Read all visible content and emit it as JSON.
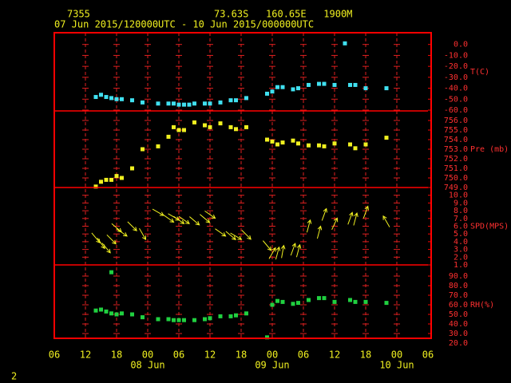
{
  "header": {
    "station": "7355",
    "location": "73.63S   160.65E   1900M",
    "period": "07 Jun 2015/120000UTC - 10 Jun 2015/000000UTC",
    "page": "2"
  },
  "chart_data": [
    {
      "type": "scatter",
      "ylabel": "T(C)",
      "color": "#40e0f0",
      "ylim": [
        -60,
        10
      ],
      "yticks": [
        {
          "value": 0,
          "label": "0.0"
        },
        {
          "value": -10,
          "label": "-10.0"
        },
        {
          "value": -20,
          "label": "-20.0"
        },
        {
          "value": -30,
          "label": "-30.0"
        },
        {
          "value": -40,
          "label": "-40.0"
        },
        {
          "value": -50,
          "label": "-50.0"
        },
        {
          "value": -60,
          "label": "-60.0"
        }
      ],
      "x": [
        8,
        9,
        10,
        11,
        12,
        13,
        15,
        17,
        20,
        22,
        23,
        24,
        25,
        26,
        27,
        29,
        30,
        32,
        34,
        35,
        37,
        41,
        42,
        43,
        44,
        46,
        47,
        49,
        51,
        52,
        54,
        56,
        57,
        58,
        60,
        64
      ],
      "values": [
        -48,
        -46,
        -48,
        -49,
        -50,
        -50,
        -51,
        -53,
        -54,
        -54,
        -54,
        -55,
        -55,
        -55,
        -54,
        -54,
        -54,
        -53,
        -51,
        -51,
        -49,
        -45,
        -43,
        -39,
        -39,
        -41,
        -40,
        -37,
        -36,
        -36,
        -37,
        1,
        -37,
        -37,
        -40,
        -40
      ]
    },
    {
      "type": "scatter",
      "ylabel": "Pre (mb)",
      "color": "#f0f020",
      "ylim": [
        749,
        757
      ],
      "yticks": [
        {
          "value": 756,
          "label": "756.0"
        },
        {
          "value": 755,
          "label": "755.0"
        },
        {
          "value": 754,
          "label": "754.0"
        },
        {
          "value": 753,
          "label": "753.0"
        },
        {
          "value": 752,
          "label": "752.0"
        },
        {
          "value": 751,
          "label": "751.0"
        },
        {
          "value": 750,
          "label": "750.0"
        },
        {
          "value": 749,
          "label": "749.0"
        }
      ],
      "x": [
        8,
        9,
        10,
        11,
        12,
        13,
        15,
        17,
        20,
        22,
        23,
        24,
        25,
        27,
        29,
        30,
        32,
        34,
        35,
        37,
        41,
        42,
        43,
        44,
        46,
        47,
        49,
        51,
        52,
        54,
        57,
        58,
        60,
        64
      ],
      "values": [
        749.1,
        749.6,
        749.8,
        749.8,
        750.2,
        750.0,
        751.0,
        753.0,
        753.3,
        754.3,
        755.3,
        755.0,
        755.0,
        755.8,
        755.5,
        755.3,
        755.7,
        755.3,
        755.1,
        755.3,
        754.0,
        753.8,
        753.5,
        753.7,
        753.9,
        753.6,
        753.4,
        753.4,
        753.3,
        753.6,
        753.5,
        753.1,
        753.5,
        754.2
      ]
    },
    {
      "type": "vector",
      "ylabel": "SPD(MPS)",
      "color": "#f0f020",
      "ylim": [
        1,
        11
      ],
      "yticks": [
        {
          "value": 10,
          "label": "10.0"
        },
        {
          "value": 9,
          "label": "9.0"
        },
        {
          "value": 8,
          "label": "8.0"
        },
        {
          "value": 7,
          "label": "7.0"
        },
        {
          "value": 6,
          "label": "6.0"
        },
        {
          "value": 5,
          "label": "5.0"
        },
        {
          "value": 4,
          "label": "4.0"
        },
        {
          "value": 3,
          "label": "3.0"
        },
        {
          "value": 2,
          "label": "2.0"
        },
        {
          "value": 1,
          "label": "1.0"
        }
      ],
      "x": [
        8,
        9,
        10,
        11,
        12,
        13,
        15,
        17,
        20,
        22,
        23,
        24,
        25,
        27,
        29,
        30,
        32,
        34,
        35,
        37,
        41,
        42,
        43,
        44,
        46,
        47,
        49,
        51,
        52,
        54,
        57,
        58,
        60,
        64
      ],
      "values": [
        4.5,
        3.8,
        3.2,
        4.3,
        5.8,
        5.2,
        6.0,
        5.0,
        7.8,
        7.0,
        7.2,
        6.8,
        6.8,
        6.7,
        7.0,
        7.5,
        5.2,
        4.8,
        4.7,
        4.9,
        3.5,
        2.5,
        2.5,
        2.7,
        3.0,
        2.8,
        6.0,
        5.2,
        7.5,
        6.3,
        7.0,
        6.9,
        7.8,
        6.6
      ],
      "directions": [
        140,
        145,
        140,
        135,
        130,
        125,
        135,
        150,
        120,
        125,
        120,
        125,
        125,
        130,
        130,
        125,
        125,
        130,
        120,
        135,
        140,
        30,
        15,
        10,
        20,
        15,
        15,
        15,
        20,
        25,
        20,
        15,
        20,
        330
      ]
    },
    {
      "type": "scatter",
      "ylabel": "RH(%)",
      "color": "#20d040",
      "ylim": [
        20,
        100
      ],
      "yticks": [
        {
          "value": 90,
          "label": "90.0"
        },
        {
          "value": 80,
          "label": "80.0"
        },
        {
          "value": 70,
          "label": "70.0"
        },
        {
          "value": 60,
          "label": "60.0"
        },
        {
          "value": 50,
          "label": "50.0"
        },
        {
          "value": 40,
          "label": "40.0"
        },
        {
          "value": 30,
          "label": "30.0"
        },
        {
          "value": 20,
          "label": "20.0"
        }
      ],
      "x": [
        8,
        9,
        10,
        11,
        11,
        12,
        13,
        15,
        17,
        20,
        22,
        23,
        24,
        25,
        27,
        29,
        30,
        32,
        34,
        35,
        37,
        41,
        42,
        43,
        44,
        46,
        47,
        49,
        51,
        52,
        54,
        57,
        58,
        60,
        64
      ],
      "values": [
        54,
        55,
        53,
        51,
        94,
        50,
        51,
        50,
        47,
        45,
        45,
        44,
        44,
        44,
        44,
        45,
        46,
        48,
        48,
        49,
        51,
        26,
        60,
        64,
        63,
        61,
        62,
        65,
        67,
        67,
        63,
        65,
        63,
        63,
        62
      ],
      "xlim": [
        0,
        72
      ],
      "xticks": [
        {
          "value": 0,
          "label": "06"
        },
        {
          "value": 6,
          "label": "12"
        },
        {
          "value": 12,
          "label": "18"
        },
        {
          "value": 18,
          "label": "00"
        },
        {
          "value": 24,
          "label": "06"
        },
        {
          "value": 30,
          "label": "12"
        },
        {
          "value": 36,
          "label": "18"
        },
        {
          "value": 42,
          "label": "00"
        },
        {
          "value": 48,
          "label": "06"
        },
        {
          "value": 54,
          "label": "12"
        },
        {
          "value": 60,
          "label": "18"
        },
        {
          "value": 66,
          "label": "00"
        },
        {
          "value": 72,
          "label": "06"
        }
      ],
      "date_labels": [
        {
          "value": 18,
          "label": "08 Jun"
        },
        {
          "value": 42,
          "label": "09 Jun"
        },
        {
          "value": 66,
          "label": "10 Jun"
        }
      ]
    }
  ]
}
